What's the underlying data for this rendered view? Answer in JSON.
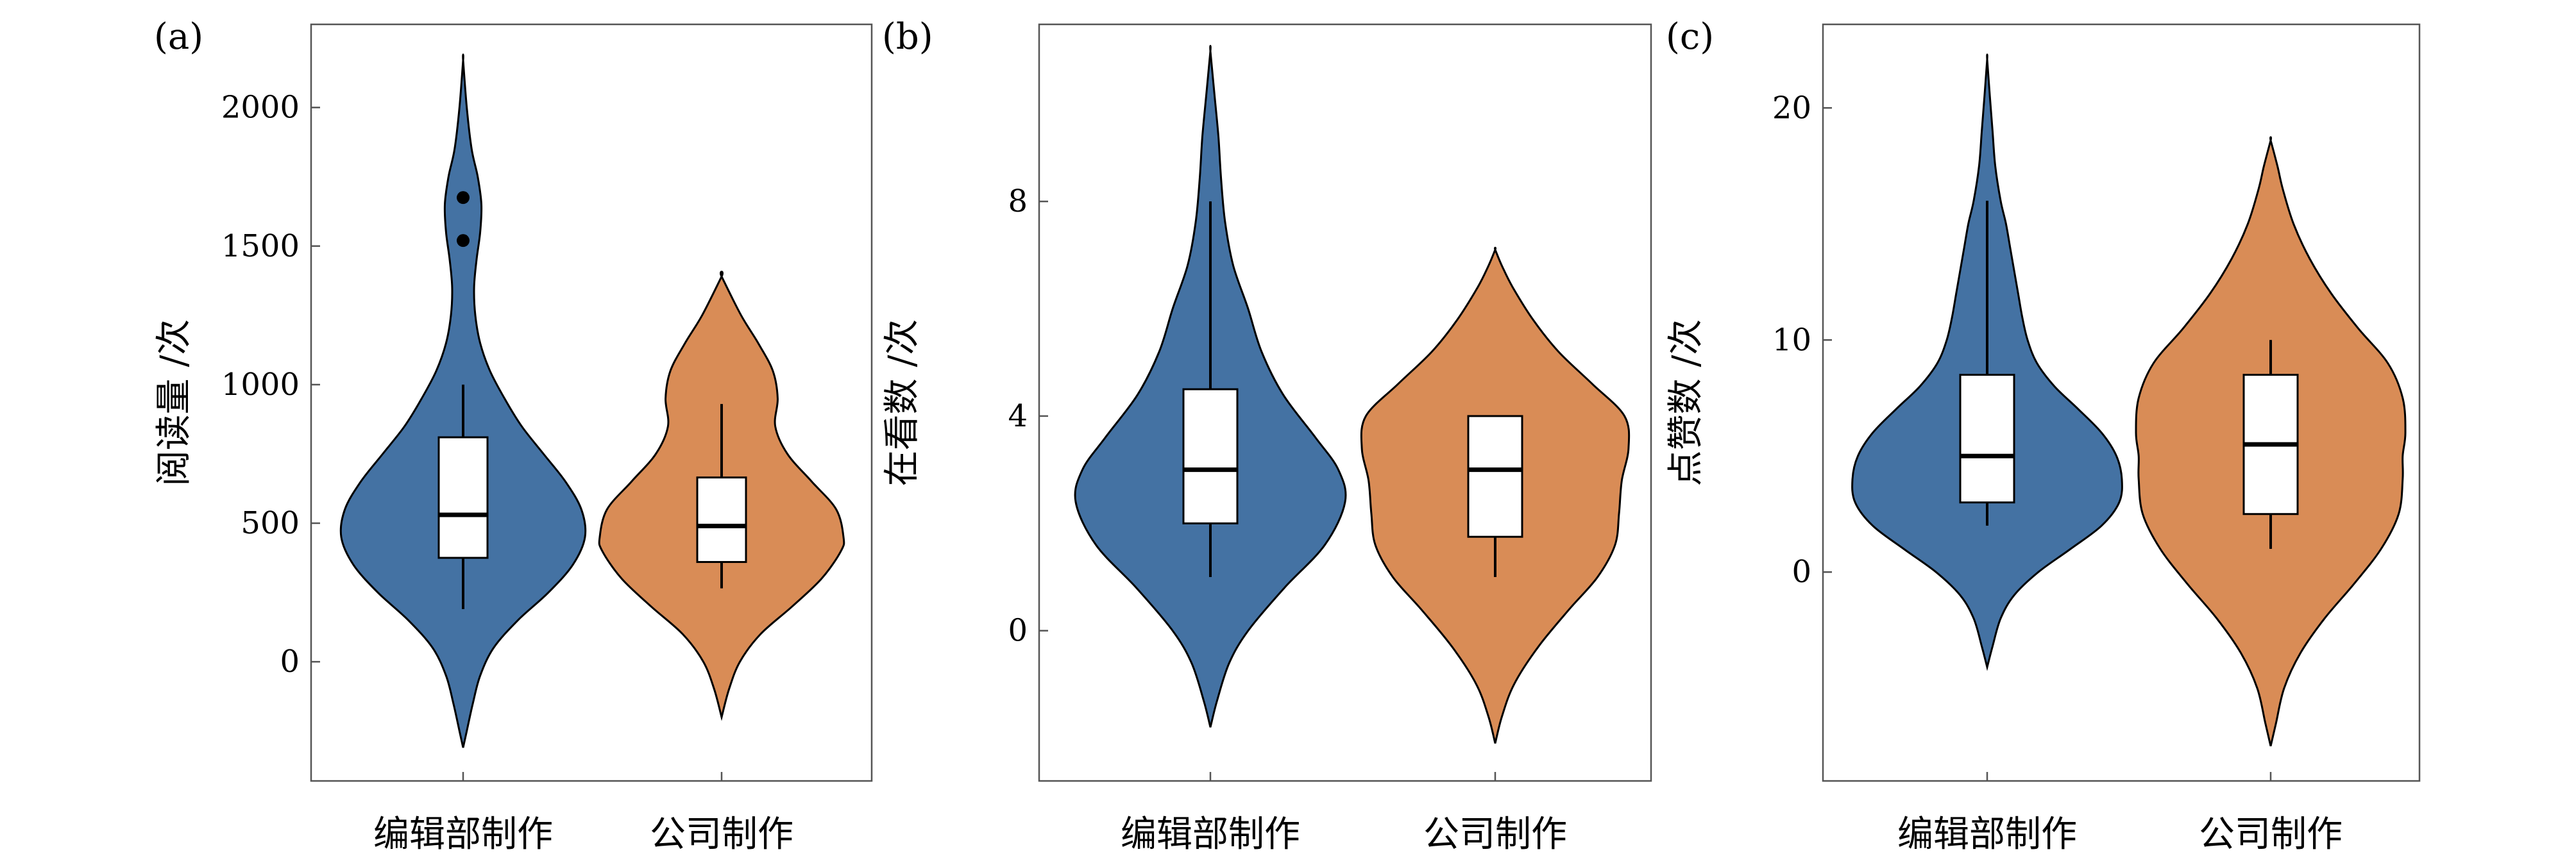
{
  "colors": {
    "editorial": "#4472a3",
    "company": "#d98c56",
    "frame": "#555555"
  },
  "chart_data": [
    {
      "type": "violin",
      "panel_label": "(a)",
      "ylabel": "阅读量 /次",
      "ylim": [
        -430,
        2300
      ],
      "yticks": [
        0,
        500,
        1000,
        1500,
        2000
      ],
      "categories": [
        "编辑部制作",
        "公司制作"
      ],
      "series": [
        {
          "name": "编辑部制作",
          "color_key": "editorial",
          "box": {
            "min": 190,
            "q1": 375,
            "median": 530,
            "q3": 810,
            "max": 1000
          },
          "outliers": [
            1520,
            1675
          ],
          "density": [
            [
              -310,
              0.0
            ],
            [
              -250,
              0.03
            ],
            [
              -150,
              0.08
            ],
            [
              -50,
              0.14
            ],
            [
              50,
              0.25
            ],
            [
              150,
              0.45
            ],
            [
              250,
              0.7
            ],
            [
              350,
              0.9
            ],
            [
              450,
              1.0
            ],
            [
              550,
              0.97
            ],
            [
              650,
              0.84
            ],
            [
              750,
              0.66
            ],
            [
              850,
              0.48
            ],
            [
              950,
              0.34
            ],
            [
              1050,
              0.22
            ],
            [
              1150,
              0.14
            ],
            [
              1250,
              0.1
            ],
            [
              1350,
              0.09
            ],
            [
              1450,
              0.11
            ],
            [
              1550,
              0.14
            ],
            [
              1650,
              0.15
            ],
            [
              1750,
              0.12
            ],
            [
              1850,
              0.07
            ],
            [
              2000,
              0.03
            ],
            [
              2170,
              0.0
            ]
          ]
        },
        {
          "name": "公司制作",
          "color_key": "company",
          "box": {
            "min": 265,
            "q1": 360,
            "median": 490,
            "q3": 665,
            "max": 930
          },
          "outliers": [],
          "density": [
            [
              -200,
              0.0
            ],
            [
              -100,
              0.06
            ],
            [
              0,
              0.15
            ],
            [
              100,
              0.32
            ],
            [
              200,
              0.58
            ],
            [
              300,
              0.82
            ],
            [
              400,
              0.98
            ],
            [
              450,
              1.0
            ],
            [
              550,
              0.94
            ],
            [
              650,
              0.74
            ],
            [
              750,
              0.54
            ],
            [
              850,
              0.44
            ],
            [
              950,
              0.46
            ],
            [
              1050,
              0.42
            ],
            [
              1150,
              0.3
            ],
            [
              1250,
              0.16
            ],
            [
              1390,
              0.0
            ]
          ]
        }
      ]
    },
    {
      "type": "violin",
      "panel_label": "(b)",
      "ylabel": "在看数 /次",
      "ylim": [
        -2.8,
        11.3
      ],
      "yticks": [
        0,
        4,
        8
      ],
      "categories": [
        "编辑部制作",
        "公司制作"
      ],
      "series": [
        {
          "name": "编辑部制作",
          "color_key": "editorial",
          "box": {
            "min": 1,
            "q1": 2,
            "median": 3,
            "q3": 4.5,
            "max": 8
          },
          "outliers": [],
          "density": [
            [
              -1.8,
              0.0
            ],
            [
              -1.3,
              0.05
            ],
            [
              -0.6,
              0.14
            ],
            [
              0,
              0.28
            ],
            [
              0.8,
              0.55
            ],
            [
              1.6,
              0.85
            ],
            [
              2.4,
              1.0
            ],
            [
              3.0,
              0.95
            ],
            [
              3.6,
              0.78
            ],
            [
              4.4,
              0.54
            ],
            [
              5.2,
              0.38
            ],
            [
              6.0,
              0.28
            ],
            [
              6.8,
              0.17
            ],
            [
              7.6,
              0.11
            ],
            [
              8.4,
              0.08
            ],
            [
              9.2,
              0.06
            ],
            [
              10.0,
              0.03
            ],
            [
              10.8,
              0.0
            ]
          ]
        },
        {
          "name": "公司制作",
          "color_key": "company",
          "box": {
            "min": 1,
            "q1": 1.75,
            "median": 3,
            "q3": 4,
            "max": 4
          },
          "outliers": [],
          "density": [
            [
              -2.1,
              0.0
            ],
            [
              -1.6,
              0.05
            ],
            [
              -1.0,
              0.14
            ],
            [
              -0.3,
              0.32
            ],
            [
              0.4,
              0.55
            ],
            [
              1.0,
              0.76
            ],
            [
              1.6,
              0.89
            ],
            [
              2.2,
              0.92
            ],
            [
              2.8,
              0.94
            ],
            [
              3.4,
              0.99
            ],
            [
              4.0,
              0.96
            ],
            [
              4.6,
              0.72
            ],
            [
              5.2,
              0.47
            ],
            [
              5.8,
              0.28
            ],
            [
              6.4,
              0.13
            ],
            [
              6.8,
              0.05
            ],
            [
              7.1,
              0.0
            ]
          ]
        }
      ]
    },
    {
      "type": "violin",
      "panel_label": "(c)",
      "ylabel": "点赞数 /次",
      "ylim": [
        -9,
        23.6
      ],
      "yticks": [
        0,
        10,
        20
      ],
      "categories": [
        "编辑部制作",
        "公司制作"
      ],
      "series": [
        {
          "name": "编辑部制作",
          "color_key": "editorial",
          "box": {
            "min": 2,
            "q1": 3,
            "median": 5,
            "q3": 8.5,
            "max": 16
          },
          "outliers": [],
          "density": [
            [
              -4.1,
              0.0
            ],
            [
              -3.2,
              0.04
            ],
            [
              -2.0,
              0.1
            ],
            [
              -1.0,
              0.2
            ],
            [
              0,
              0.38
            ],
            [
              1.0,
              0.62
            ],
            [
              2.0,
              0.85
            ],
            [
              3.0,
              0.98
            ],
            [
              4.0,
              1.0
            ],
            [
              5.0,
              0.96
            ],
            [
              6.0,
              0.85
            ],
            [
              7.0,
              0.68
            ],
            [
              8.0,
              0.5
            ],
            [
              9.0,
              0.37
            ],
            [
              10.0,
              0.3
            ],
            [
              11.0,
              0.26
            ],
            [
              12.0,
              0.23
            ],
            [
              13.0,
              0.2
            ],
            [
              14.0,
              0.17
            ],
            [
              15.0,
              0.14
            ],
            [
              16.0,
              0.1
            ],
            [
              17.5,
              0.06
            ],
            [
              19.0,
              0.04
            ],
            [
              20.5,
              0.02
            ],
            [
              22.1,
              0.0
            ]
          ]
        },
        {
          "name": "公司制作",
          "color_key": "company",
          "box": {
            "min": 1,
            "q1": 2.5,
            "median": 5.5,
            "q3": 8.5,
            "max": 10
          },
          "outliers": [],
          "density": [
            [
              -7.5,
              0.0
            ],
            [
              -6.5,
              0.04
            ],
            [
              -5.0,
              0.1
            ],
            [
              -3.5,
              0.22
            ],
            [
              -2.0,
              0.4
            ],
            [
              -0.5,
              0.62
            ],
            [
              1.0,
              0.82
            ],
            [
              2.5,
              0.95
            ],
            [
              4.0,
              0.98
            ],
            [
              5.0,
              0.98
            ],
            [
              6.0,
              1.0
            ],
            [
              7.5,
              0.98
            ],
            [
              9.0,
              0.87
            ],
            [
              10.5,
              0.65
            ],
            [
              12.0,
              0.45
            ],
            [
              13.5,
              0.29
            ],
            [
              15.0,
              0.17
            ],
            [
              16.5,
              0.09
            ],
            [
              17.5,
              0.05
            ],
            [
              18.6,
              0.0
            ]
          ]
        }
      ]
    }
  ]
}
